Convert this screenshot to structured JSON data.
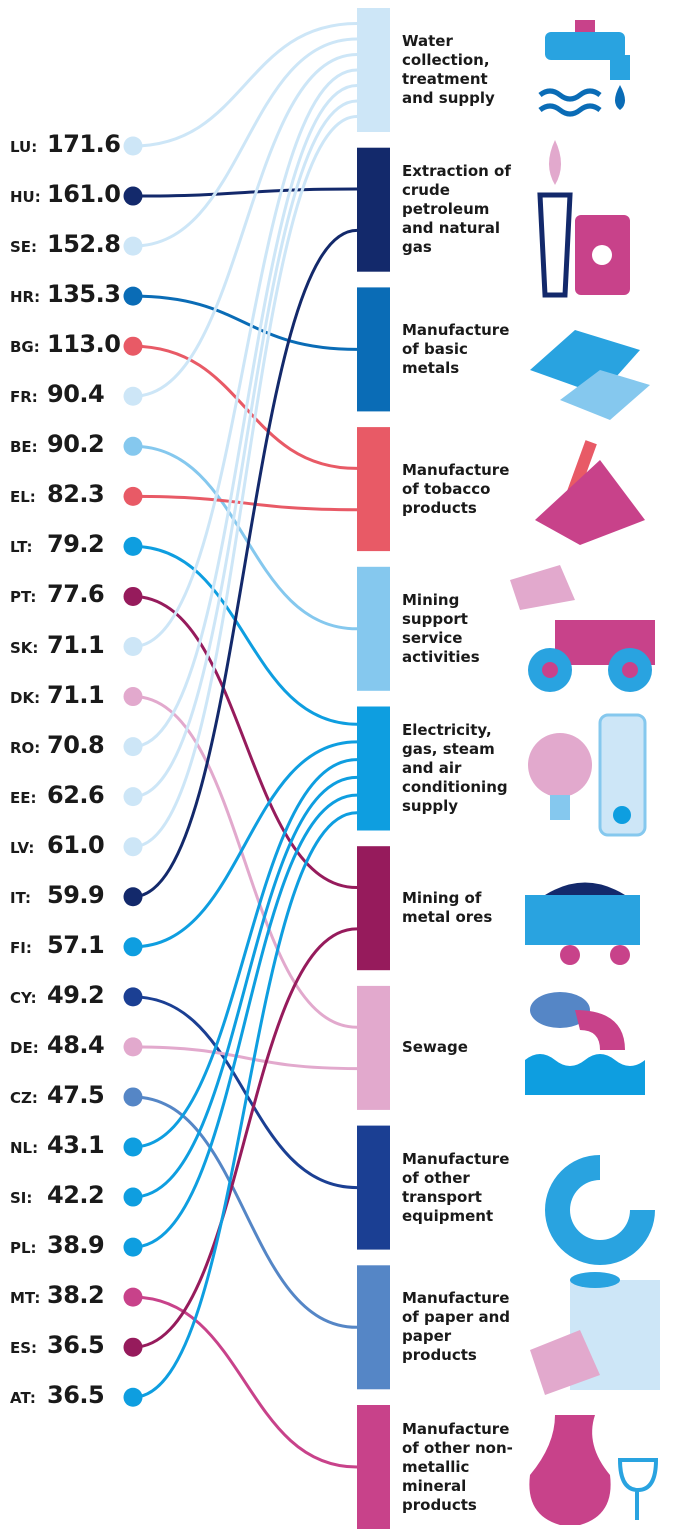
{
  "industries": [
    {
      "label": "Water collection, treatment and supply",
      "color": "#cde6f7"
    },
    {
      "label": "Extraction of crude petroleum and natural gas",
      "color": "#13296b"
    },
    {
      "label": "Manufacture of basic metals",
      "color": "#0a6cb6"
    },
    {
      "label": "Manufacture of tobacco products",
      "color": "#e85a66"
    },
    {
      "label": "Mining support service activities",
      "color": "#85c8ee"
    },
    {
      "label": "Electricity, gas, steam and air conditioning supply",
      "color": "#0e9ee0"
    },
    {
      "label": "Mining of metal ores",
      "color": "#961b5c"
    },
    {
      "label": "Sewage",
      "color": "#e2a9cd"
    },
    {
      "label": "Manufacture of other transport equipment",
      "color": "#1b3f93"
    },
    {
      "label": "Manufacture of paper and paper products",
      "color": "#5586c6"
    },
    {
      "label": "Manufacture of other non-metallic mineral products",
      "color": "#c8428a"
    }
  ],
  "countries": [
    {
      "code": "LU:",
      "value": "171.6",
      "industry": 0
    },
    {
      "code": "HU:",
      "value": "161.0",
      "industry": 1
    },
    {
      "code": "SE:",
      "value": "152.8",
      "industry": 0
    },
    {
      "code": "HR:",
      "value": "135.3",
      "industry": 2
    },
    {
      "code": "BG:",
      "value": "113.0",
      "industry": 3
    },
    {
      "code": "FR:",
      "value": "90.4",
      "industry": 0
    },
    {
      "code": "BE:",
      "value": "90.2",
      "industry": 4
    },
    {
      "code": "EL:",
      "value": "82.3",
      "industry": 3
    },
    {
      "code": "LT:",
      "value": "79.2",
      "industry": 5
    },
    {
      "code": "PT:",
      "value": "77.6",
      "industry": 6
    },
    {
      "code": "SK:",
      "value": "71.1",
      "industry": 0
    },
    {
      "code": "DK:",
      "value": "71.1",
      "industry": 7
    },
    {
      "code": "RO:",
      "value": "70.8",
      "industry": 0
    },
    {
      "code": "EE:",
      "value": "62.6",
      "industry": 0
    },
    {
      "code": "LV:",
      "value": "61.0",
      "industry": 0
    },
    {
      "code": "IT:",
      "value": "59.9",
      "industry": 1
    },
    {
      "code": "FI:",
      "value": "57.1",
      "industry": 5
    },
    {
      "code": "CY:",
      "value": "49.2",
      "industry": 8
    },
    {
      "code": "DE:",
      "value": "48.4",
      "industry": 7
    },
    {
      "code": "CZ:",
      "value": "47.5",
      "industry": 9
    },
    {
      "code": "NL:",
      "value": "43.1",
      "industry": 5
    },
    {
      "code": "SI:",
      "value": "42.2",
      "industry": 5
    },
    {
      "code": "PL:",
      "value": "38.9",
      "industry": 5
    },
    {
      "code": "MT:",
      "value": "38.2",
      "industry": 10
    },
    {
      "code": "ES:",
      "value": "36.5",
      "industry": 6
    },
    {
      "code": "AT:",
      "value": "36.5",
      "industry": 5
    }
  ]
}
